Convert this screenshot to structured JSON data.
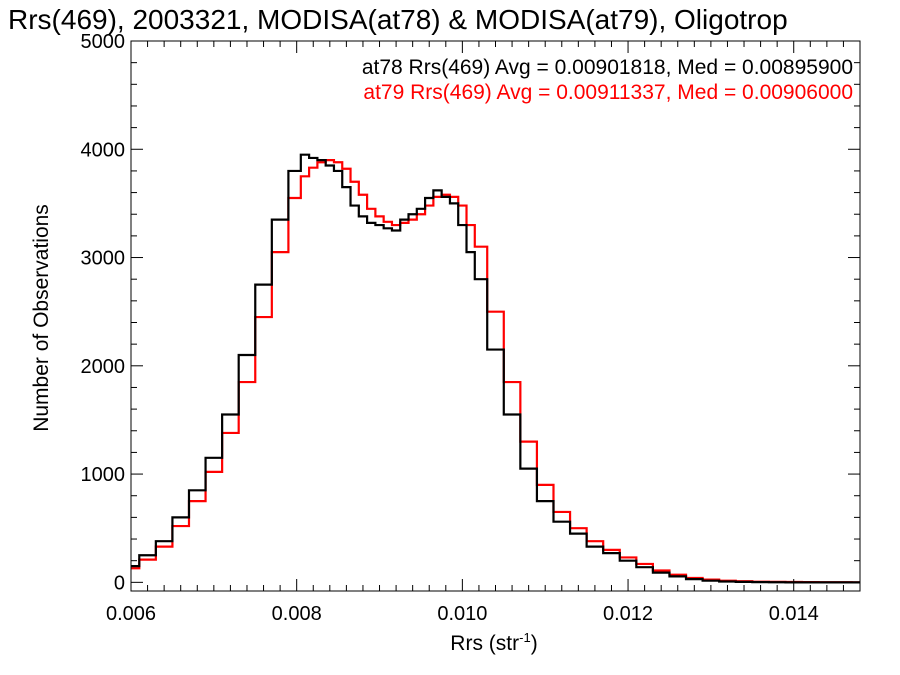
{
  "chart_data": {
    "type": "line",
    "title": "Rrs(469), 2003321, MODISA(at78) & MODISA(at79), Oligotrop",
    "xlabel_main": "Rrs (str",
    "xlabel_sup": "-1",
    "xlabel_tail": ")",
    "ylabel": "Number of Observations",
    "xlim": [
      0.006,
      0.0148
    ],
    "ylim": [
      -80,
      5000
    ],
    "x_ticks": [
      0.006,
      0.008,
      0.01,
      0.012,
      0.014
    ],
    "x_tick_labels": [
      "0.006",
      "0.008",
      "0.010",
      "0.012",
      "0.014"
    ],
    "y_ticks": [
      0,
      1000,
      2000,
      3000,
      4000,
      5000
    ],
    "y_tick_labels": [
      "0",
      "1000",
      "2000",
      "3000",
      "4000",
      "5000"
    ],
    "grid": false,
    "legend_placement": "top-right",
    "annotations": [
      "at78 Rrs(469) Avg = 0.00901818, Med = 0.00895900",
      "at79 Rrs(469) Avg = 0.00911337, Med = 0.00906000"
    ],
    "series": [
      {
        "name": "at78",
        "color": "#000000",
        "x": [
          0.006,
          0.0062,
          0.0064,
          0.0066,
          0.0068,
          0.007,
          0.0072,
          0.0074,
          0.0076,
          0.0078,
          0.008,
          0.0081,
          0.0082,
          0.0083,
          0.0084,
          0.0085,
          0.0086,
          0.0087,
          0.0088,
          0.0089,
          0.009,
          0.0091,
          0.0092,
          0.0093,
          0.0094,
          0.0095,
          0.0096,
          0.0097,
          0.0098,
          0.0099,
          0.01,
          0.0101,
          0.0102,
          0.0104,
          0.0106,
          0.0108,
          0.011,
          0.0112,
          0.0114,
          0.0116,
          0.0118,
          0.012,
          0.0122,
          0.0124,
          0.0126,
          0.0128,
          0.013,
          0.0132,
          0.0134,
          0.0136,
          0.0138,
          0.014,
          0.0142,
          0.0144,
          0.0146,
          0.0148
        ],
        "y": [
          150,
          250,
          380,
          600,
          850,
          1150,
          1550,
          2100,
          2750,
          3350,
          3800,
          3950,
          3920,
          3900,
          3850,
          3800,
          3650,
          3480,
          3380,
          3320,
          3300,
          3270,
          3250,
          3350,
          3400,
          3450,
          3550,
          3620,
          3560,
          3500,
          3300,
          3050,
          2800,
          2150,
          1550,
          1050,
          750,
          560,
          450,
          330,
          270,
          200,
          140,
          90,
          55,
          30,
          15,
          8,
          4,
          2,
          1,
          0,
          0,
          0,
          0,
          0
        ]
      },
      {
        "name": "at79",
        "color": "#ff0000",
        "x": [
          0.006,
          0.0062,
          0.0064,
          0.0066,
          0.0068,
          0.007,
          0.0072,
          0.0074,
          0.0076,
          0.0078,
          0.008,
          0.0081,
          0.0082,
          0.0083,
          0.0084,
          0.0085,
          0.0086,
          0.0087,
          0.0088,
          0.0089,
          0.009,
          0.0091,
          0.0092,
          0.0093,
          0.0094,
          0.0095,
          0.0096,
          0.0097,
          0.0098,
          0.0099,
          0.01,
          0.0101,
          0.0102,
          0.0104,
          0.0106,
          0.0108,
          0.011,
          0.0112,
          0.0114,
          0.0116,
          0.0118,
          0.012,
          0.0122,
          0.0124,
          0.0126,
          0.0128,
          0.013,
          0.0132,
          0.0134,
          0.0136,
          0.0138,
          0.014,
          0.0142,
          0.0144,
          0.0146,
          0.0148
        ],
        "y": [
          130,
          210,
          330,
          520,
          750,
          1020,
          1380,
          1850,
          2450,
          3050,
          3550,
          3750,
          3830,
          3880,
          3900,
          3880,
          3820,
          3700,
          3580,
          3450,
          3380,
          3330,
          3300,
          3320,
          3350,
          3400,
          3480,
          3560,
          3580,
          3560,
          3480,
          3300,
          3100,
          2500,
          1850,
          1300,
          900,
          650,
          500,
          380,
          300,
          230,
          170,
          110,
          70,
          40,
          25,
          15,
          10,
          6,
          4,
          3,
          2,
          1,
          1,
          0
        ]
      }
    ]
  }
}
